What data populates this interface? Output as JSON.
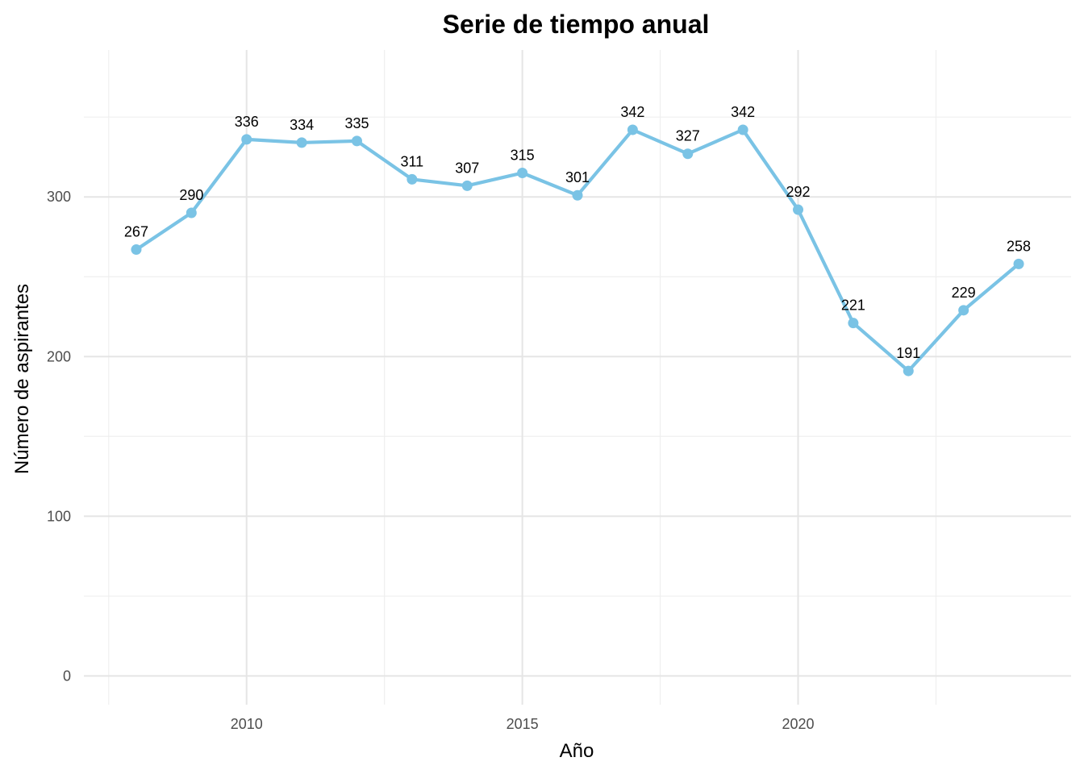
{
  "chart_data": {
    "type": "line",
    "title": "Serie de tiempo anual",
    "xlabel": "Año",
    "ylabel": "Número de aspirantes",
    "x": [
      2008,
      2009,
      2010,
      2011,
      2012,
      2013,
      2014,
      2015,
      2016,
      2017,
      2018,
      2019,
      2020,
      2021,
      2022,
      2023,
      2024
    ],
    "series": [
      {
        "values": [
          267,
          290,
          336,
          334,
          335,
          311,
          307,
          315,
          301,
          342,
          327,
          342,
          292,
          221,
          191,
          229,
          258
        ],
        "data_labels": [
          "267",
          "290",
          "336",
          "334",
          "335",
          "311",
          "307",
          "315",
          "301",
          "342",
          "327",
          "342",
          "292",
          "221",
          "191",
          "229",
          "258"
        ]
      }
    ],
    "xlim": [
      2007.05,
      2024.95
    ],
    "ylim": [
      -18,
      392
    ],
    "xticks": [
      2010,
      2015,
      2020
    ],
    "xtick_labels": [
      "2010",
      "2015",
      "2020"
    ],
    "xminor": [
      2007.5,
      2012.5,
      2017.5,
      2022.5
    ],
    "yticks": [
      0,
      100,
      200,
      300
    ],
    "ytick_labels": [
      "0",
      "100",
      "200",
      "300"
    ],
    "yminor": [
      50,
      150,
      250,
      350
    ],
    "grid": true,
    "legend": false,
    "line_color": "#7AC3E5",
    "point_color": "#7AC3E5",
    "grid_color": "#E5E5E5"
  }
}
